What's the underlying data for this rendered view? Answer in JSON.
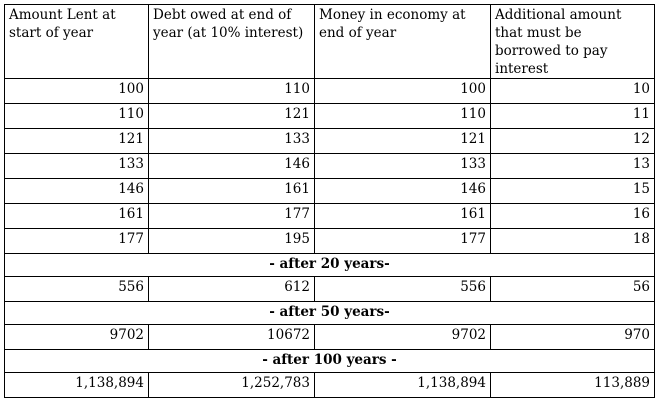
{
  "table": {
    "headers": [
      "Amount Lent at start of year",
      "Debt owed at end of year (at 10% interest)",
      "Money in economy at end of year",
      "Additional amount that must be borrowed to pay interest"
    ],
    "rows": [
      [
        "100",
        "110",
        "100",
        "10"
      ],
      [
        "110",
        "121",
        "110",
        "11"
      ],
      [
        "121",
        "133",
        "121",
        "12"
      ],
      [
        "133",
        "146",
        "133",
        "13"
      ],
      [
        "146",
        "161",
        "146",
        "15"
      ],
      [
        "161",
        "177",
        "161",
        "16"
      ],
      [
        "177",
        "195",
        "177",
        "18"
      ]
    ],
    "sections": [
      {
        "label": "- after 20 years-",
        "row": [
          "556",
          "612",
          "556",
          "56"
        ]
      },
      {
        "label": "- after 50 years-",
        "row": [
          "9702",
          "10672",
          "9702",
          "970"
        ]
      },
      {
        "label": "- after 100 years -",
        "row": [
          "1,138,894",
          "1,252,783",
          "1,138,894",
          "113,889"
        ]
      }
    ]
  }
}
